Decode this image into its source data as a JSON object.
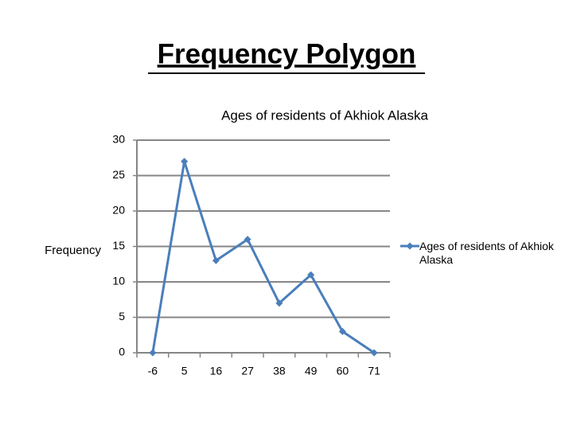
{
  "title": "Frequency Polygon",
  "chart_data": {
    "type": "line",
    "title": "Ages of residents of Akhiok Alaska",
    "y_label": "Frequency",
    "categories": [
      "-6",
      "5",
      "16",
      "27",
      "38",
      "49",
      "60",
      "71"
    ],
    "series": [
      {
        "name": "Ages of residents of Akhiok Alaska",
        "color": "#4a7ebb",
        "values": [
          0,
          27,
          13,
          16,
          7,
          11,
          3,
          0
        ]
      }
    ],
    "ylim": [
      0,
      30
    ],
    "yticks": [
      0,
      5,
      10,
      15,
      20,
      25,
      30
    ],
    "grid": true,
    "legend": "right"
  }
}
